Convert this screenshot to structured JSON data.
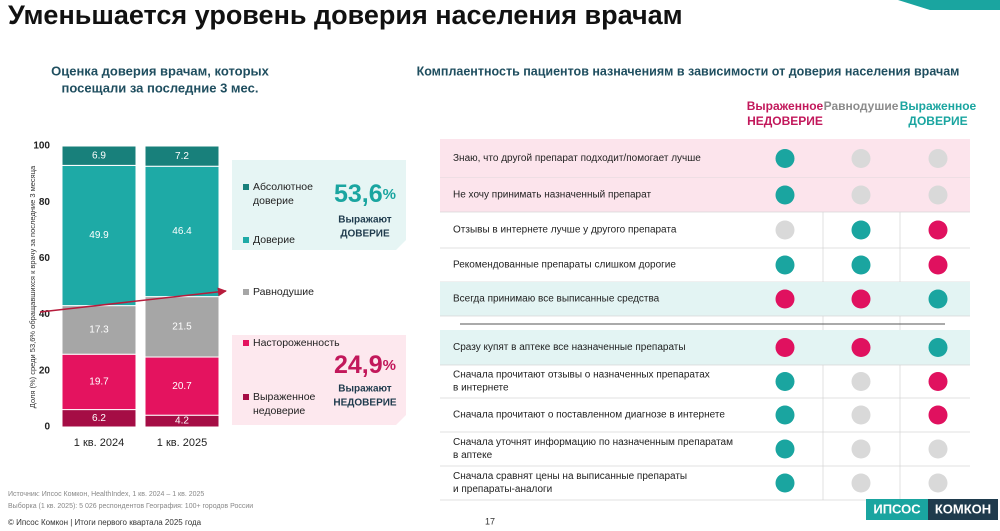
{
  "title": "Уменьшается уровень доверия населения врачам",
  "chart_data": {
    "type": "stacked_bar",
    "title": [
      "Оценка доверия врачам, которых",
      "посещали за последние 3 мес."
    ],
    "y_label": "Доля (%) среди 53,6% обращавшихся к врачу  за последние 3 месяца",
    "categories": [
      "1 кв. 2024",
      "1 кв. 2025"
    ],
    "series": [
      {
        "name": [
          "Выраженное",
          "недоверие"
        ],
        "color": "#a50d45",
        "values": [
          6.2,
          4.2
        ]
      },
      {
        "name": [
          "Настороженность"
        ],
        "color": "#e4135f",
        "values": [
          19.7,
          20.7
        ]
      },
      {
        "name": [
          "Равнодушие"
        ],
        "color": "#a6a6a6",
        "values": [
          17.3,
          21.5
        ]
      },
      {
        "name": [
          "Доверие"
        ],
        "color": "#1eaaa6",
        "values": [
          49.9,
          46.4
        ]
      },
      {
        "name": [
          "Абсолютное",
          "доверие"
        ],
        "color": "#18807b",
        "values": [
          6.9,
          7.2
        ]
      }
    ],
    "ylim": [
      0,
      100
    ],
    "yticks": [
      0,
      20,
      40,
      60,
      80,
      100
    ],
    "grid": false,
    "callouts": [
      {
        "value": "53,6",
        "unit": "%",
        "text": [
          "Выражают",
          "ДОВЕРИЕ"
        ],
        "color": "#1aa5a0",
        "background": "#e6f5f4"
      },
      {
        "value": "24,9",
        "unit": "%",
        "text": [
          "Выражают",
          "НЕДОВЕРИЕ"
        ],
        "color": "#c2185b",
        "background": "#fde8ee"
      }
    ]
  },
  "table": {
    "title": "Комплаентность пациентов назначениям в зависимости от доверия населения врачам",
    "columns": [
      {
        "lines": [
          "Выраженное",
          "НЕДОВЕРИЕ"
        ],
        "color": "#c2185b"
      },
      {
        "lines": [
          "Равнодушие"
        ],
        "color": "#8c8c8c"
      },
      {
        "lines": [
          "Выраженное",
          "ДОВЕРИЕ"
        ],
        "color": "#1aa5a0"
      }
    ],
    "groups": [
      [
        {
          "label": [
            "Знаю, что другой препарат подходит/помогает лучше"
          ],
          "dots": [
            "#1aa5a0",
            "#d9d9d9",
            "#d9d9d9"
          ],
          "background": "#fce4ec"
        },
        {
          "label": [
            "Не хочу принимать назначенный препарат"
          ],
          "dots": [
            "#1aa5a0",
            "#d9d9d9",
            "#d9d9d9"
          ],
          "background": "#fce4ec"
        },
        {
          "label": [
            "Отзывы в интернете лучше у другого препарата"
          ],
          "dots": [
            "#d9d9d9",
            "#1aa5a0",
            "#e0115f"
          ]
        },
        {
          "label": [
            "Рекомендованные препараты слишком дорогие"
          ],
          "dots": [
            "#1aa5a0",
            "#1aa5a0",
            "#e0115f"
          ]
        },
        {
          "label": [
            "Всегда принимаю все выписанные средства"
          ],
          "dots": [
            "#e0115f",
            "#e0115f",
            "#1aa5a0"
          ],
          "background": "#e3f4f3"
        }
      ],
      [
        {
          "label": [
            "Сразу купят в аптеке все назначенные препараты"
          ],
          "dots": [
            "#e0115f",
            "#e0115f",
            "#1aa5a0"
          ],
          "background": "#e3f4f3"
        },
        {
          "label": [
            "Сначала прочитают отзывы о назначенных препаратах",
            "в интернете"
          ],
          "dots": [
            "#1aa5a0",
            "#d9d9d9",
            "#e0115f"
          ]
        },
        {
          "label": [
            "Сначала прочитают о поставленном диагнозе в интернете"
          ],
          "dots": [
            "#1aa5a0",
            "#d9d9d9",
            "#e0115f"
          ]
        },
        {
          "label": [
            "Сначала уточнят информацию по назначенным препаратам",
            "в аптеке"
          ],
          "dots": [
            "#1aa5a0",
            "#d9d9d9",
            "#d9d9d9"
          ]
        },
        {
          "label": [
            "Сначала сравнят цены на выписанные препараты",
            "и препараты-аналоги"
          ],
          "dots": [
            "#1aa5a0",
            "#d9d9d9",
            "#d9d9d9"
          ]
        }
      ]
    ]
  },
  "footer": {
    "source": "Источник: Ипсос Комкон, HealthIndex, 1 кв. 2024 – 1 кв. 2025",
    "sample": "Выборка (1 кв. 2025): 5 026 респондентов География: 100+ городов России",
    "copyright": "© Ипсос Комкон | Итоги первого квартала 2025 года",
    "page": 17,
    "logo": [
      "ИПСОС",
      "КОМКОН"
    ]
  }
}
